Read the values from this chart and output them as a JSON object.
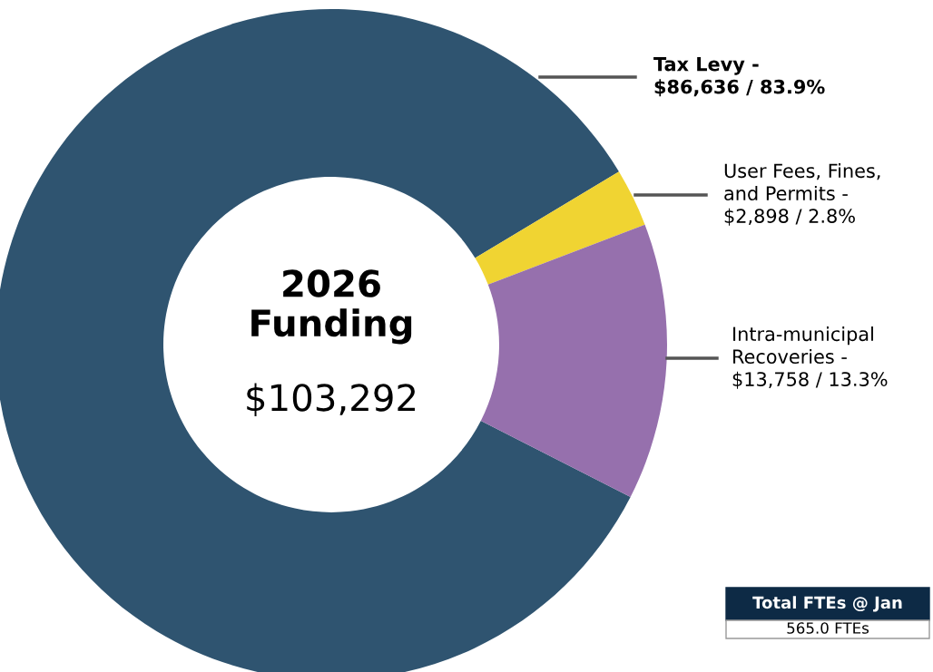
{
  "chart_data": {
    "type": "donut",
    "title": "2026\nFunding",
    "subtitle": "$103,292",
    "categories": [
      "Tax Levy -",
      "User Fees, Fines,\nand Permits -",
      "Intra-municipal\nRecoveries -"
    ],
    "values": [
      86636,
      2898,
      13758
    ],
    "value_labels": [
      "$86,636 / 83.9%",
      "$2,898 / 2.8%",
      "$13,758 / 13.3%"
    ],
    "colors": [
      "#2f5470",
      "#f0d432",
      "#9670ad"
    ],
    "annotations": [
      "Total FTEs @ Jan",
      "565.0 FTEs"
    ]
  }
}
